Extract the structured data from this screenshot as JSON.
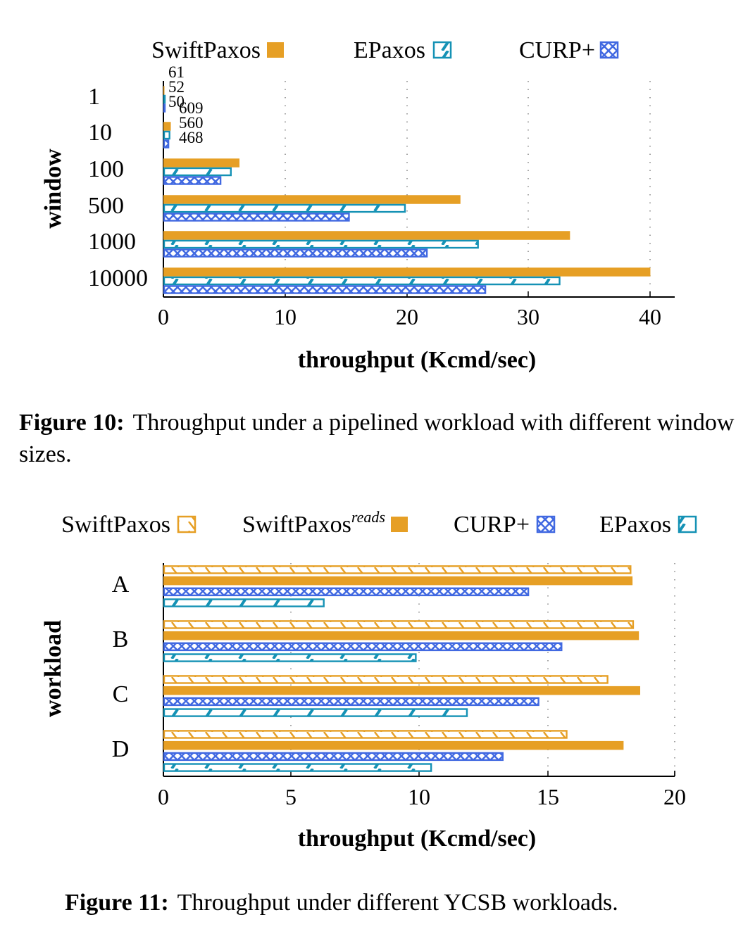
{
  "colors": {
    "swiftpaxos": "#E69F25",
    "epaxos": "#1592B5",
    "curp": "#4169E1"
  },
  "figure10": {
    "label": "Figure 10:",
    "caption": "Throughput under a pipelined workload with different window sizes."
  },
  "figure11": {
    "label": "Figure 11:",
    "caption": "Throughput under different YCSB workloads."
  },
  "chart_data": [
    {
      "type": "bar",
      "orientation": "horizontal",
      "xlabel": "throughput (Kcmd/sec)",
      "ylabel": "window",
      "xlim": [
        0,
        42
      ],
      "xticks": [
        "0",
        "10",
        "20",
        "30",
        "40"
      ],
      "grid": "vertical dotted",
      "legend_position": "top",
      "categories": [
        "1",
        "10",
        "100",
        "500",
        "1000",
        "10000"
      ],
      "series": [
        {
          "name": "SwiftPaxos",
          "style": "solid",
          "color": "#E69F25",
          "values": [
            0.061,
            0.609,
            6.25,
            24.4,
            33.4,
            40.0
          ]
        },
        {
          "name": "EPaxos",
          "style": "diagonal-hatch",
          "color": "#1592B5",
          "values": [
            0.052,
            0.56,
            5.6,
            19.9,
            25.9,
            32.6
          ]
        },
        {
          "name": "CURP+",
          "style": "cross-hatch",
          "color": "#4169E1",
          "values": [
            0.05,
            0.468,
            4.75,
            15.3,
            21.7,
            26.5
          ]
        }
      ],
      "annotations": [
        {
          "category": "1",
          "labels": [
            "61",
            "52",
            "50"
          ]
        },
        {
          "category": "10",
          "labels": [
            "609",
            "560",
            "468"
          ]
        }
      ]
    },
    {
      "type": "bar",
      "orientation": "horizontal",
      "xlabel": "throughput (Kcmd/sec)",
      "ylabel": "workload",
      "xlim": [
        0,
        20
      ],
      "xticks": [
        "0",
        "5",
        "10",
        "15",
        "20"
      ],
      "grid": "vertical dotted",
      "legend_position": "top",
      "categories": [
        "A",
        "B",
        "C",
        "D"
      ],
      "series": [
        {
          "name": "SwiftPaxos",
          "style": "back-diagonal-hatch",
          "color": "#E69F25",
          "values": [
            18.3,
            18.4,
            17.4,
            15.8
          ]
        },
        {
          "name": "SwiftPaxos",
          "superscript": "reads",
          "style": "solid",
          "color": "#E69F25",
          "values": [
            18.35,
            18.6,
            18.65,
            18.0
          ]
        },
        {
          "name": "CURP+",
          "style": "cross-hatch",
          "color": "#4169E1",
          "values": [
            14.3,
            15.6,
            14.7,
            13.3
          ]
        },
        {
          "name": "EPaxos",
          "style": "diagonal-hatch",
          "color": "#1592B5",
          "values": [
            6.3,
            9.9,
            11.9,
            10.5
          ]
        }
      ]
    }
  ]
}
